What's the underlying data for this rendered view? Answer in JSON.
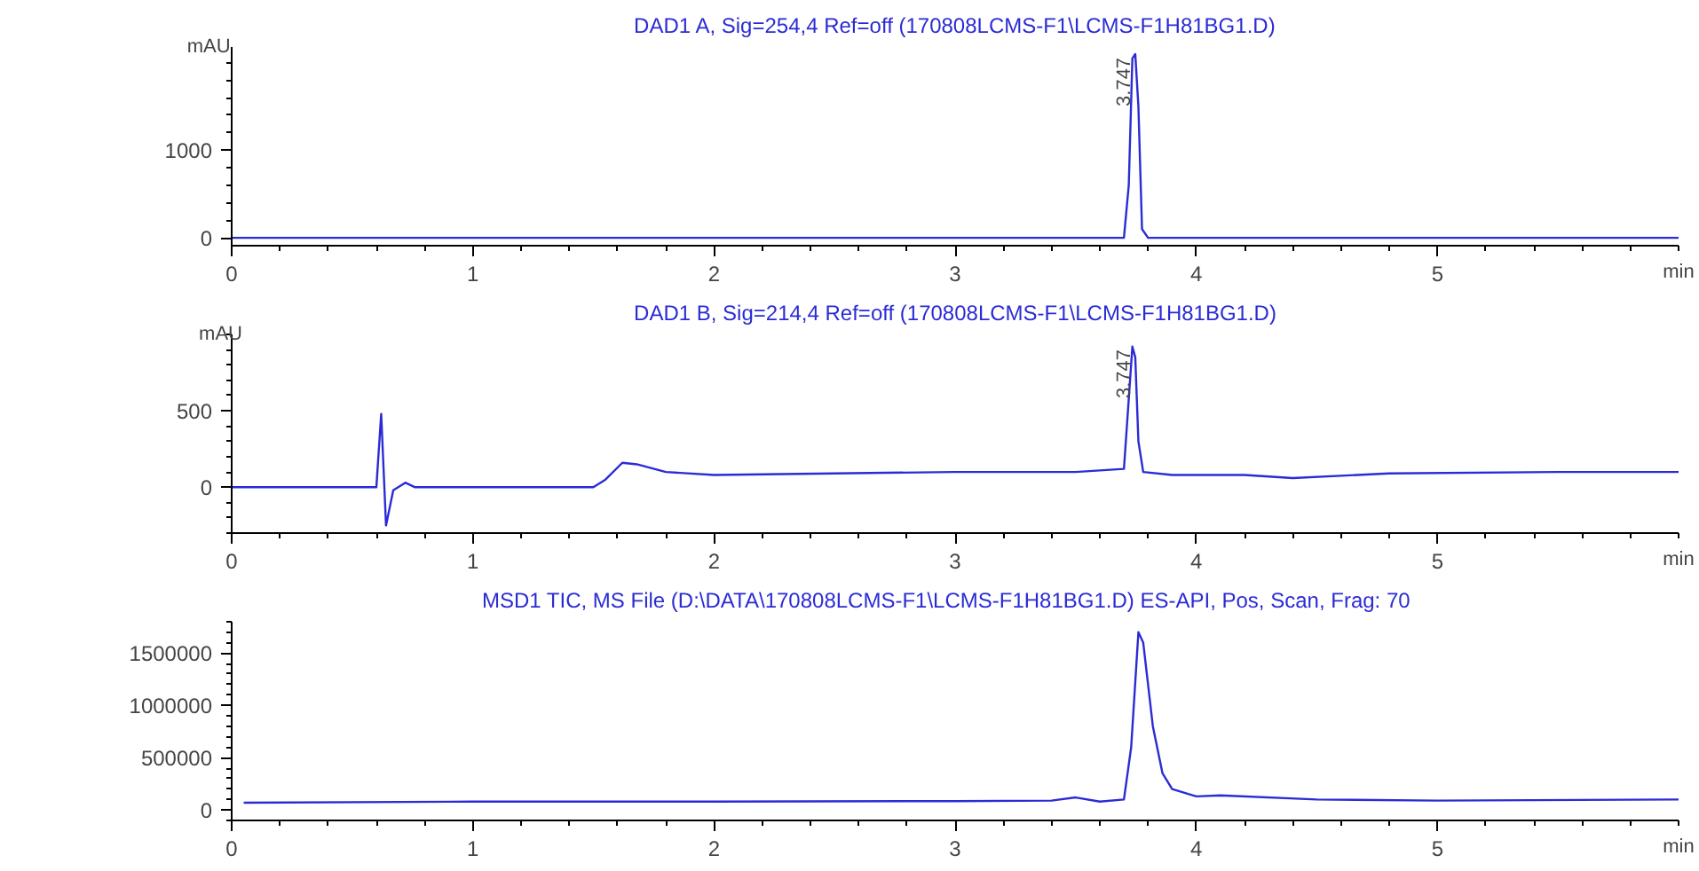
{
  "chart_data": [
    {
      "type": "line",
      "title": "DAD1 A, Sig=254,4 Ref=off (170808LCMS-F1\\LCMS-F1H81BG1.D)",
      "xlabel": "min",
      "ylabel": "mAU",
      "x": [
        0,
        1,
        2,
        3,
        3.6,
        3.7,
        3.72,
        3.735,
        3.747,
        3.76,
        3.775,
        3.8,
        4,
        5,
        6
      ],
      "series": [
        {
          "color": "#2b2bd6",
          "values": [
            0,
            0,
            0,
            0,
            0,
            0,
            600,
            2050,
            2100,
            1500,
            100,
            0,
            0,
            0,
            0
          ]
        }
      ],
      "xlim": [
        0,
        6
      ],
      "xticks": [
        0,
        1,
        2,
        3,
        4,
        5
      ],
      "ylim": [
        -90,
        2180
      ],
      "yticks": [
        0,
        1000
      ],
      "annotations": [
        {
          "text": "3.747",
          "x": 3.747,
          "y": 2100
        }
      ]
    },
    {
      "type": "line",
      "title": "DAD1 B, Sig=214,4 Ref=off (170808LCMS-F1\\LCMS-F1H81BG1.D)",
      "xlabel": "min",
      "ylabel": "mAU",
      "x": [
        0,
        0.5,
        0.6,
        0.62,
        0.64,
        0.67,
        0.72,
        0.76,
        1.0,
        1.5,
        1.55,
        1.62,
        1.68,
        1.8,
        2.0,
        2.5,
        3.0,
        3.5,
        3.7,
        3.735,
        3.747,
        3.76,
        3.78,
        3.9,
        4.2,
        4.4,
        4.8,
        5.5,
        6
      ],
      "series": [
        {
          "color": "#2b2bd6",
          "values": [
            0,
            0,
            0,
            480,
            -250,
            -20,
            30,
            0,
            0,
            0,
            50,
            160,
            150,
            100,
            80,
            90,
            100,
            100,
            120,
            920,
            850,
            300,
            100,
            80,
            80,
            60,
            90,
            100,
            100
          ]
        }
      ],
      "xlim": [
        0,
        6
      ],
      "xticks": [
        0,
        1,
        2,
        3,
        4,
        5
      ],
      "ylim": [
        -300,
        1000
      ],
      "yticks": [
        0,
        500
      ],
      "annotations": [
        {
          "text": "3.747",
          "x": 3.747,
          "y": 925
        }
      ]
    },
    {
      "type": "line",
      "title": "MSD1 TIC, MS File (D:\\DATA\\170808LCMS-F1\\LCMS-F1H81BG1.D)    ES-API, Pos, Scan, Frag: 70",
      "xlabel": "min",
      "x": [
        0.05,
        1,
        2,
        3,
        3.4,
        3.5,
        3.6,
        3.7,
        3.73,
        3.76,
        3.78,
        3.82,
        3.86,
        3.9,
        4.0,
        4.1,
        4.5,
        5,
        6
      ],
      "series": [
        {
          "color": "#2b2bd6",
          "values": [
            70000,
            80000,
            80000,
            85000,
            90000,
            120000,
            80000,
            100000,
            600000,
            1700000,
            1600000,
            800000,
            350000,
            200000,
            130000,
            140000,
            100000,
            90000,
            100000
          ]
        }
      ],
      "xlim": [
        0,
        6
      ],
      "xticks": [
        0,
        1,
        2,
        3,
        4,
        5
      ],
      "ylim": [
        -100000,
        1800000
      ],
      "yticks": [
        0,
        500000,
        1000000,
        1500000
      ]
    }
  ]
}
